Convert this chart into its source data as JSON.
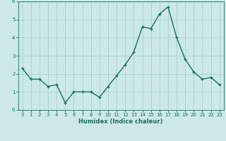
{
  "xlabel": "Humidex (Indice chaleur)",
  "x": [
    0,
    1,
    2,
    3,
    4,
    5,
    6,
    7,
    8,
    9,
    10,
    11,
    12,
    13,
    14,
    15,
    16,
    17,
    18,
    19,
    20,
    21,
    22,
    23
  ],
  "y": [
    2.3,
    1.7,
    1.7,
    1.3,
    1.4,
    0.4,
    1.0,
    1.0,
    1.0,
    0.7,
    1.3,
    1.9,
    2.5,
    3.2,
    4.6,
    4.5,
    5.3,
    5.7,
    4.0,
    2.8,
    2.1,
    1.7,
    1.8,
    1.4
  ],
  "line_color": "#1a7060",
  "marker": "+",
  "marker_size": 3.5,
  "marker_lw": 1.0,
  "bg_color": "#cce8e8",
  "grid_color": "#aad0d0",
  "tick_color": "#1a7060",
  "ylim": [
    0,
    6
  ],
  "xlim": [
    -0.5,
    23.5
  ],
  "yticks": [
    0,
    1,
    2,
    3,
    4,
    5,
    6
  ],
  "xticks": [
    0,
    1,
    2,
    3,
    4,
    5,
    6,
    7,
    8,
    9,
    10,
    11,
    12,
    13,
    14,
    15,
    16,
    17,
    18,
    19,
    20,
    21,
    22,
    23
  ],
  "xtick_labels": [
    "0",
    "1",
    "2",
    "3",
    "4",
    "5",
    "6",
    "7",
    "8",
    "9",
    "10",
    "11",
    "12",
    "13",
    "14",
    "15",
    "16",
    "17",
    "18",
    "19",
    "20",
    "21",
    "22",
    "23"
  ],
  "line_width": 1.0,
  "tick_fontsize": 5.0,
  "xlabel_fontsize": 6.0
}
